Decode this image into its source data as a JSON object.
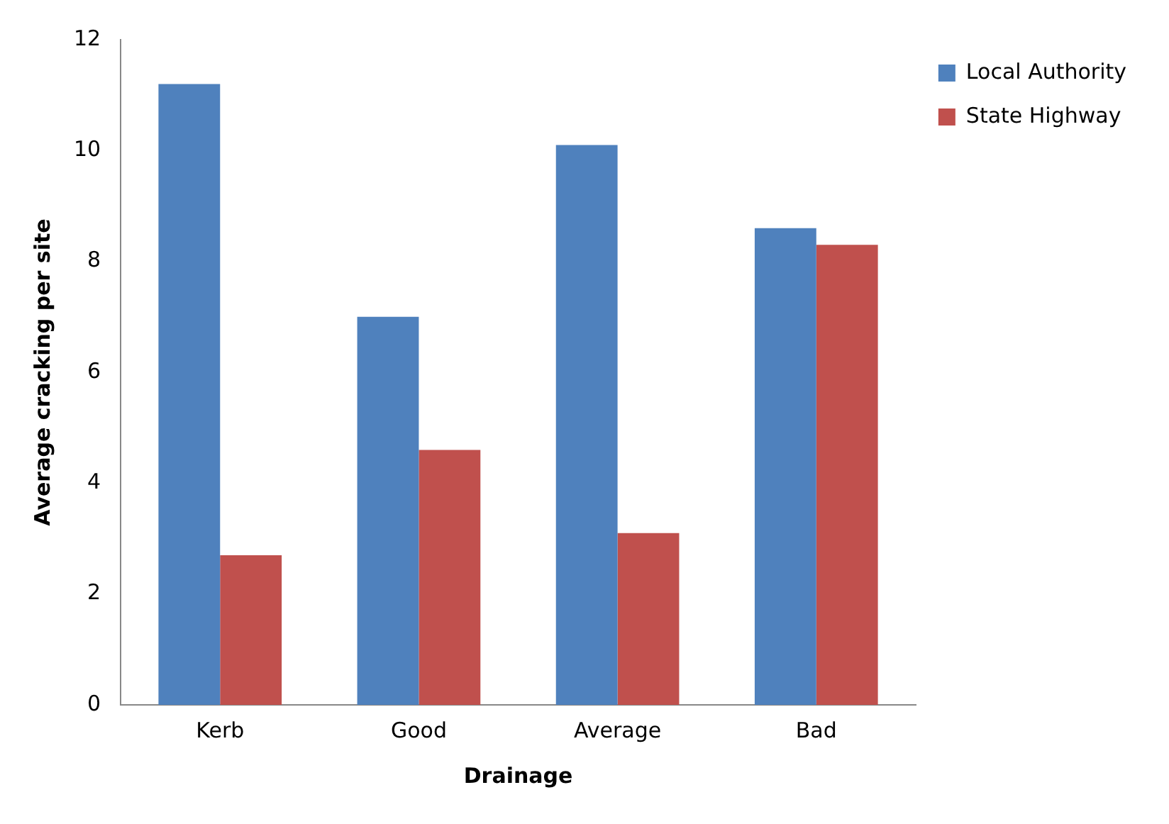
{
  "chart_data": {
    "type": "bar",
    "xlabel": "Drainage",
    "ylabel": "Average cracking per site",
    "categories": [
      "Kerb",
      "Good",
      "Average",
      "Bad"
    ],
    "series": [
      {
        "name": "Local Authority",
        "color": "#4f81bd",
        "values": [
          11.2,
          7.0,
          10.1,
          8.6
        ]
      },
      {
        "name": "State Highway",
        "color": "#c0504d",
        "values": [
          2.7,
          4.6,
          3.1,
          8.3
        ]
      }
    ],
    "ylim": [
      0,
      12
    ],
    "yticks": [
      0,
      2,
      4,
      6,
      8,
      10,
      12
    ],
    "grid": false,
    "legend": "top right"
  }
}
